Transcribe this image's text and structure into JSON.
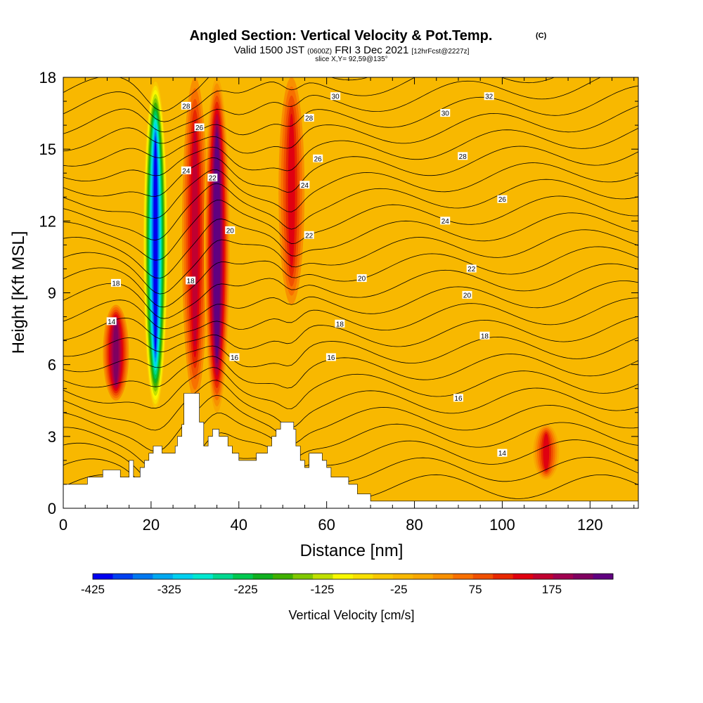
{
  "title": {
    "main": "Angled Section: Vertical Velocity & Pot.Temp.",
    "main_suffix": "(C)",
    "valid_prefix": "Valid 1500 JST",
    "valid_utc": "(0600Z)",
    "valid_date": "FRI 3 Dec 2021",
    "forecast": "[12hrFcst@2227z]",
    "slice": "slice X,Y= 92,59@135°"
  },
  "chart_data": {
    "type": "heatmap",
    "title": "Angled Section: Vertical Velocity & Pot.Temp.",
    "xlabel": "Distance [nm]",
    "ylabel": "Height [Kft MSL]",
    "xlim": [
      0,
      131
    ],
    "ylim": [
      0,
      18
    ],
    "xticks": [
      "0",
      "20",
      "40",
      "60",
      "80",
      "100",
      "120"
    ],
    "xtick_values": [
      0,
      20,
      40,
      60,
      80,
      100,
      120
    ],
    "yticks": [
      "0",
      "3",
      "6",
      "9",
      "12",
      "15",
      "18"
    ],
    "ytick_values": [
      0,
      3,
      6,
      9,
      12,
      15,
      18
    ],
    "colorbar": {
      "label": "Vertical Velocity [cm/s]",
      "tick_labels": [
        "-425",
        "-325",
        "-225",
        "-125",
        "-25",
        "75",
        "175"
      ],
      "tick_values": [
        -425,
        -325,
        -225,
        -125,
        -25,
        75,
        175
      ],
      "min": -425,
      "max": 255,
      "step": 25,
      "colors": [
        "#0000f0",
        "#0040f0",
        "#0078f0",
        "#00a8f0",
        "#00d0f0",
        "#00e8d0",
        "#00d890",
        "#00c850",
        "#10b020",
        "#40b000",
        "#80c800",
        "#c0e000",
        "#f8f800",
        "#f8e000",
        "#f8c800",
        "#f8b800",
        "#f8a800",
        "#f89000",
        "#f87000",
        "#f05000",
        "#e82800",
        "#e00010",
        "#c00030",
        "#a00050",
        "#800060",
        "#600080"
      ]
    },
    "velocity_features": [
      {
        "x": 12,
        "y_range": [
          4.5,
          8.5
        ],
        "value": 175
      },
      {
        "x": 21,
        "y_range": [
          4,
          18
        ],
        "value": -425
      },
      {
        "x": 30,
        "y_range": [
          4.5,
          18
        ],
        "value": 125
      },
      {
        "x": 35,
        "y_range": [
          4,
          18
        ],
        "value": 240
      },
      {
        "x": 52,
        "y_range": [
          8.5,
          18
        ],
        "value": 100
      },
      {
        "x": 110,
        "y_range": [
          1.2,
          3.5
        ],
        "value": 120
      }
    ],
    "contour_labels": [
      {
        "text": "28",
        "x": 28,
        "y": 16.8
      },
      {
        "text": "30",
        "x": 62,
        "y": 17.2
      },
      {
        "text": "32",
        "x": 97,
        "y": 17.2
      },
      {
        "text": "26",
        "x": 31,
        "y": 15.9
      },
      {
        "text": "28",
        "x": 56,
        "y": 16.3
      },
      {
        "text": "30",
        "x": 87,
        "y": 16.5
      },
      {
        "text": "24",
        "x": 28,
        "y": 14.1
      },
      {
        "text": "26",
        "x": 58,
        "y": 14.6
      },
      {
        "text": "28",
        "x": 91,
        "y": 14.7
      },
      {
        "text": "22",
        "x": 34,
        "y": 13.8
      },
      {
        "text": "24",
        "x": 55,
        "y": 13.5
      },
      {
        "text": "26",
        "x": 100,
        "y": 12.9
      },
      {
        "text": "20",
        "x": 38,
        "y": 11.6
      },
      {
        "text": "22",
        "x": 56,
        "y": 11.4
      },
      {
        "text": "24",
        "x": 87,
        "y": 12.0
      },
      {
        "text": "18",
        "x": 12,
        "y": 9.4
      },
      {
        "text": "18",
        "x": 29,
        "y": 9.5
      },
      {
        "text": "20",
        "x": 68,
        "y": 9.6
      },
      {
        "text": "22",
        "x": 93,
        "y": 10.0
      },
      {
        "text": "20",
        "x": 92,
        "y": 8.9
      },
      {
        "text": "14",
        "x": 11,
        "y": 7.8
      },
      {
        "text": "18",
        "x": 63,
        "y": 7.7
      },
      {
        "text": "18",
        "x": 96,
        "y": 7.2
      },
      {
        "text": "16",
        "x": 39,
        "y": 6.3
      },
      {
        "text": "16",
        "x": 61,
        "y": 6.3
      },
      {
        "text": "16",
        "x": 90,
        "y": 4.6
      },
      {
        "text": "14",
        "x": 100,
        "y": 2.3
      }
    ],
    "terrain": [
      [
        0,
        1.0
      ],
      [
        5.5,
        1.0
      ],
      [
        5.5,
        1.3
      ],
      [
        9,
        1.3
      ],
      [
        9,
        1.6
      ],
      [
        13,
        1.6
      ],
      [
        13,
        1.3
      ],
      [
        15,
        1.3
      ],
      [
        15,
        2.0
      ],
      [
        16,
        2.0
      ],
      [
        16,
        1.3
      ],
      [
        17.5,
        1.3
      ],
      [
        17.5,
        1.7
      ],
      [
        18.5,
        1.7
      ],
      [
        18.5,
        2.0
      ],
      [
        19.5,
        2.0
      ],
      [
        19.5,
        2.3
      ],
      [
        20.5,
        2.3
      ],
      [
        20.5,
        2.6
      ],
      [
        22.5,
        2.6
      ],
      [
        22.5,
        2.3
      ],
      [
        25.5,
        2.3
      ],
      [
        25.5,
        2.6
      ],
      [
        26,
        2.6
      ],
      [
        26,
        3.0
      ],
      [
        27,
        3.0
      ],
      [
        27,
        3.5
      ],
      [
        27.5,
        3.5
      ],
      [
        27.5,
        4.8
      ],
      [
        31,
        4.8
      ],
      [
        31,
        3.6
      ],
      [
        32,
        3.6
      ],
      [
        32,
        2.6
      ],
      [
        33,
        2.6
      ],
      [
        33,
        3.0
      ],
      [
        34,
        3.0
      ],
      [
        34,
        3.3
      ],
      [
        35.5,
        3.3
      ],
      [
        35.5,
        3.0
      ],
      [
        37.5,
        3.0
      ],
      [
        37.5,
        2.6
      ],
      [
        38.5,
        2.6
      ],
      [
        38.5,
        2.3
      ],
      [
        40,
        2.3
      ],
      [
        40,
        2.0
      ],
      [
        44,
        2.0
      ],
      [
        44,
        2.3
      ],
      [
        46.5,
        2.3
      ],
      [
        46.5,
        2.6
      ],
      [
        47.5,
        2.6
      ],
      [
        47.5,
        3.0
      ],
      [
        48.5,
        3.0
      ],
      [
        48.5,
        3.3
      ],
      [
        49.5,
        3.3
      ],
      [
        49.5,
        3.6
      ],
      [
        52.5,
        3.6
      ],
      [
        52.5,
        3.3
      ],
      [
        53,
        3.3
      ],
      [
        53,
        2.6
      ],
      [
        54,
        2.6
      ],
      [
        54,
        2.0
      ],
      [
        55,
        2.0
      ],
      [
        55,
        1.7
      ],
      [
        56,
        1.7
      ],
      [
        56,
        2.3
      ],
      [
        59,
        2.3
      ],
      [
        59,
        2.0
      ],
      [
        60,
        2.0
      ],
      [
        60,
        1.7
      ],
      [
        61,
        1.7
      ],
      [
        61,
        1.3
      ],
      [
        65,
        1.3
      ],
      [
        65,
        1.0
      ],
      [
        67,
        1.0
      ],
      [
        67,
        0.6
      ],
      [
        70,
        0.6
      ],
      [
        70,
        0.3
      ],
      [
        79,
        0.3
      ],
      [
        79,
        0.3
      ],
      [
        131,
        0.3
      ]
    ]
  }
}
